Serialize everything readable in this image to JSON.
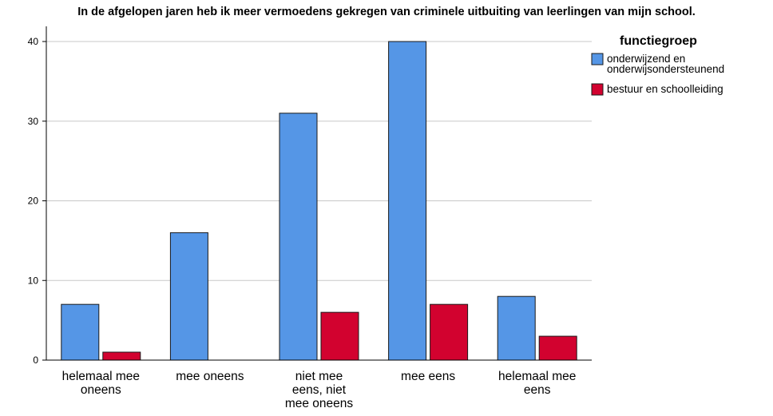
{
  "chart_data": {
    "type": "bar",
    "title": "In de afgelopen jaren heb ik meer vermoedens gekregen van criminele uitbuiting van leerlingen van mijn school.",
    "xlabel": "",
    "ylabel": "",
    "ylim": [
      0,
      42
    ],
    "yticks": [
      0,
      10,
      20,
      30,
      40
    ],
    "grid": true,
    "legend_position": "top-right",
    "legend_title": "functiegroep",
    "categories": [
      [
        "helemaal mee",
        "oneens"
      ],
      [
        "mee oneens"
      ],
      [
        "niet mee",
        "eens, niet",
        "mee oneens"
      ],
      [
        "mee eens"
      ],
      [
        "helemaal mee",
        "eens"
      ]
    ],
    "series": [
      {
        "name": [
          "onderwijzend en",
          "onderwijsondersteunend"
        ],
        "color": "#5596e6",
        "values": [
          7,
          16,
          31,
          40,
          8
        ]
      },
      {
        "name": [
          "bestuur en schoolleiding"
        ],
        "color": "#d2022f",
        "values": [
          1,
          0,
          6,
          7,
          3
        ]
      }
    ]
  }
}
